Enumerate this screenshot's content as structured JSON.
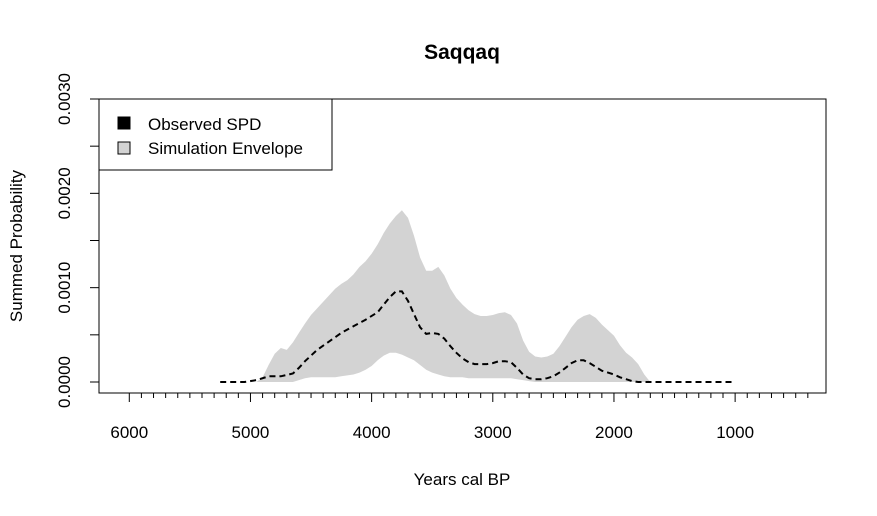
{
  "chart_data": {
    "type": "area",
    "title": "Saqqaq",
    "xlabel": "Years cal BP",
    "ylabel": "Summed Probability",
    "x_reversed": true,
    "xlim": [
      6250,
      250
    ],
    "ylim": [
      0.0,
      0.003
    ],
    "x_ticks": [
      6000,
      5000,
      4000,
      3000,
      2000,
      1000
    ],
    "x_tick_labels": [
      "6000",
      "5000",
      "4000",
      "3000",
      "2000",
      "1000"
    ],
    "y_ticks": [
      0.0,
      0.0005,
      0.001,
      0.0015,
      0.002,
      0.0025,
      0.003
    ],
    "y_tick_labels": [
      "0.0000",
      "",
      "0.0010",
      "",
      "0.0020",
      "",
      "0.0030"
    ],
    "legend": {
      "position": "top-left",
      "entries": [
        {
          "label": "Observed SPD",
          "color": "#000000"
        },
        {
          "label": "Simulation Envelope",
          "color": "#d3d3d3"
        }
      ]
    },
    "colors": {
      "envelope": "#d3d3d3",
      "observed": "#000000"
    },
    "series": [
      {
        "name": "Observed SPD",
        "style": "dashed-line",
        "x": [
          5250,
          5150,
          5050,
          4950,
          4850,
          4750,
          4650,
          4600,
          4550,
          4450,
          4350,
          4250,
          4150,
          4050,
          3950,
          3900,
          3850,
          3800,
          3750,
          3700,
          3650,
          3600,
          3550,
          3500,
          3450,
          3400,
          3350,
          3300,
          3250,
          3200,
          3150,
          3100,
          3050,
          3000,
          2950,
          2900,
          2850,
          2800,
          2750,
          2700,
          2650,
          2600,
          2550,
          2500,
          2450,
          2400,
          2350,
          2300,
          2250,
          2200,
          2150,
          2100,
          2050,
          2000,
          1950,
          1900,
          1850,
          1800,
          1700,
          1600,
          1500,
          1400,
          1300,
          1200,
          1100,
          1000
        ],
        "y": [
          0.0,
          0.0,
          0.0,
          2e-05,
          6e-05,
          6e-05,
          9e-05,
          0.00015,
          0.00022,
          0.00034,
          0.00043,
          0.00052,
          0.00059,
          0.00066,
          0.00074,
          0.00082,
          0.0009,
          0.00096,
          0.00096,
          0.00086,
          0.00072,
          0.00058,
          0.00051,
          0.00052,
          0.00051,
          0.00046,
          0.00038,
          0.00031,
          0.00025,
          0.00021,
          0.00019,
          0.00019,
          0.00019,
          0.0002,
          0.00022,
          0.00022,
          0.00021,
          0.00015,
          8e-05,
          4e-05,
          3e-05,
          3e-05,
          4e-05,
          6e-05,
          0.0001,
          0.00015,
          0.0002,
          0.00023,
          0.00023,
          0.0002,
          0.00016,
          0.00012,
          0.0001,
          8e-05,
          5e-05,
          3e-05,
          1e-05,
          0.0,
          0.0,
          0.0,
          0.0,
          0.0,
          0.0,
          0.0,
          0.0,
          0.0
        ]
      },
      {
        "name": "Simulation Envelope",
        "style": "filled-band",
        "x": [
          4950,
          4900,
          4850,
          4800,
          4750,
          4700,
          4650,
          4600,
          4550,
          4500,
          4450,
          4400,
          4350,
          4300,
          4250,
          4200,
          4150,
          4100,
          4050,
          4000,
          3950,
          3900,
          3850,
          3800,
          3750,
          3700,
          3650,
          3600,
          3550,
          3500,
          3450,
          3400,
          3350,
          3300,
          3250,
          3200,
          3150,
          3100,
          3050,
          3000,
          2950,
          2900,
          2850,
          2800,
          2750,
          2700,
          2650,
          2600,
          2550,
          2500,
          2450,
          2400,
          2350,
          2300,
          2250,
          2200,
          2150,
          2100,
          2050,
          2000,
          1950,
          1900,
          1850,
          1800,
          1750,
          1700
        ],
        "upper": [
          0.0,
          5e-05,
          0.00018,
          0.0003,
          0.00036,
          0.00034,
          0.00042,
          0.00052,
          0.00062,
          0.00071,
          0.00078,
          0.00085,
          0.00092,
          0.00099,
          0.00104,
          0.00108,
          0.00114,
          0.00122,
          0.00128,
          0.00136,
          0.00146,
          0.00158,
          0.00168,
          0.00176,
          0.00182,
          0.00174,
          0.00155,
          0.00132,
          0.00118,
          0.00118,
          0.00122,
          0.00113,
          0.00099,
          0.00089,
          0.00082,
          0.00076,
          0.00072,
          0.0007,
          0.0007,
          0.00071,
          0.00073,
          0.00074,
          0.00071,
          0.00062,
          0.00044,
          0.00032,
          0.00027,
          0.00026,
          0.00027,
          0.0003,
          0.00038,
          0.00048,
          0.00058,
          0.00066,
          0.0007,
          0.00072,
          0.00068,
          0.00061,
          0.00055,
          0.00049,
          0.00039,
          0.00031,
          0.00026,
          0.00019,
          8e-05,
          0.0
        ],
        "lower": [
          0.0,
          0.0,
          0.0,
          0.0,
          0.0,
          0.0,
          0.0,
          2e-05,
          4e-05,
          5e-05,
          5e-05,
          5e-05,
          5e-05,
          5e-05,
          6e-05,
          7e-05,
          8e-05,
          0.0001,
          0.00013,
          0.00017,
          0.00023,
          0.00028,
          0.00031,
          0.00031,
          0.00029,
          0.00026,
          0.00023,
          0.00018,
          0.00013,
          0.0001,
          8e-05,
          6e-05,
          5e-05,
          5e-05,
          5e-05,
          4e-05,
          4e-05,
          4e-05,
          4e-05,
          4e-05,
          4e-05,
          4e-05,
          4e-05,
          3e-05,
          2e-05,
          1e-05,
          0.0,
          0.0,
          0.0,
          0.0,
          0.0,
          0.0,
          0.0,
          0.0,
          0.0,
          0.0,
          0.0,
          0.0,
          0.0,
          0.0,
          0.0,
          0.0,
          0.0,
          0.0,
          0.0,
          0.0
        ]
      }
    ]
  }
}
